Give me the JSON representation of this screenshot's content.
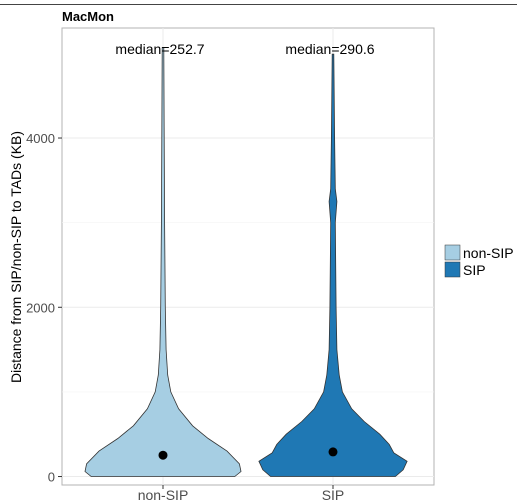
{
  "chart_data": {
    "type": "violin",
    "title": "MacMon",
    "xlabel": "",
    "ylabel": "Distance from SIP/non-SIP to TADs (KB)",
    "categories": [
      "non-SIP",
      "SIP"
    ],
    "ylim": [
      -100,
      5300
    ],
    "yticks": [
      0,
      2000,
      4000
    ],
    "grid": true,
    "legend_position": "right",
    "series": [
      {
        "name": "non-SIP",
        "color": "#a6cee3",
        "median": 252.7,
        "median_label": "median=252.7",
        "max": 5070,
        "min": 0,
        "density_profile": [
          [
            0,
            0.92
          ],
          [
            60,
            1.0
          ],
          [
            150,
            0.98
          ],
          [
            300,
            0.82
          ],
          [
            450,
            0.58
          ],
          [
            600,
            0.38
          ],
          [
            800,
            0.2
          ],
          [
            1000,
            0.1
          ],
          [
            1200,
            0.06
          ],
          [
            1500,
            0.04
          ],
          [
            2000,
            0.03
          ],
          [
            3000,
            0.02
          ],
          [
            4000,
            0.015
          ],
          [
            5070,
            0.01
          ]
        ]
      },
      {
        "name": "SIP",
        "color": "#1f78b4",
        "median": 290.6,
        "median_label": "median=290.6",
        "max": 4990,
        "min": 0,
        "density_profile": [
          [
            0,
            0.8
          ],
          [
            80,
            0.9
          ],
          [
            180,
            0.95
          ],
          [
            280,
            0.78
          ],
          [
            380,
            0.72
          ],
          [
            500,
            0.6
          ],
          [
            650,
            0.4
          ],
          [
            800,
            0.24
          ],
          [
            1000,
            0.12
          ],
          [
            1200,
            0.08
          ],
          [
            1500,
            0.05
          ],
          [
            2000,
            0.04
          ],
          [
            3000,
            0.03
          ],
          [
            3250,
            0.05
          ],
          [
            3400,
            0.03
          ],
          [
            4000,
            0.02
          ],
          [
            4990,
            0.01
          ]
        ]
      }
    ]
  }
}
